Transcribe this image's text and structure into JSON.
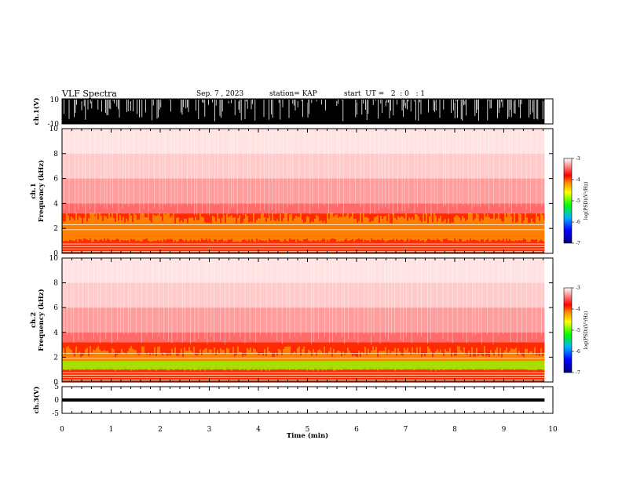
{
  "header": {
    "title": "VLF Spectra",
    "date": "Sep. 7 , 2023",
    "station": "station= KAP",
    "start": "start  UT =   2  : 0   : 1"
  },
  "chart_data": [
    {
      "type": "line",
      "name": "waveform-ch1",
      "ylabel": "ch.1(V)",
      "ylim": [
        -10,
        10
      ],
      "yticks": [
        "10",
        "-10"
      ],
      "xlim": [
        0,
        10
      ],
      "data_end_min": 9.83
    },
    {
      "type": "heatmap",
      "name": "spectrogram-ch1",
      "ylabel": "ch.1\nFrequency (kHz)",
      "ylim": [
        0,
        10
      ],
      "yticks": [
        "0",
        "2",
        "4",
        "6",
        "8",
        "10"
      ],
      "colorbar": {
        "label": "log(PSD)(V²/Hz)",
        "range": [
          -7,
          -3
        ],
        "ticks": [
          "-3",
          "-4",
          "-5",
          "-6",
          "-7"
        ]
      }
    },
    {
      "type": "heatmap",
      "name": "spectrogram-ch2",
      "ylabel": "ch.2\nFrequency (kHz)",
      "ylim": [
        0,
        10
      ],
      "yticks": [
        "0",
        "2",
        "4",
        "6",
        "8",
        "10"
      ],
      "colorbar": {
        "label": "log(PSD)(V²/Hz)",
        "range": [
          -7,
          -3
        ],
        "ticks": [
          "-3",
          "-4",
          "-5",
          "-6",
          "-7"
        ]
      }
    },
    {
      "type": "line",
      "name": "waveform-ch3",
      "ylabel": "ch.3(V)",
      "ylim": [
        -5,
        5
      ],
      "yticks": [
        "5",
        "0",
        "-5"
      ],
      "level": 0
    }
  ],
  "xaxis": {
    "label": "Time  (min)",
    "ticks": [
      "0",
      "1",
      "2",
      "3",
      "4",
      "5",
      "6",
      "7",
      "8",
      "9",
      "10"
    ]
  }
}
